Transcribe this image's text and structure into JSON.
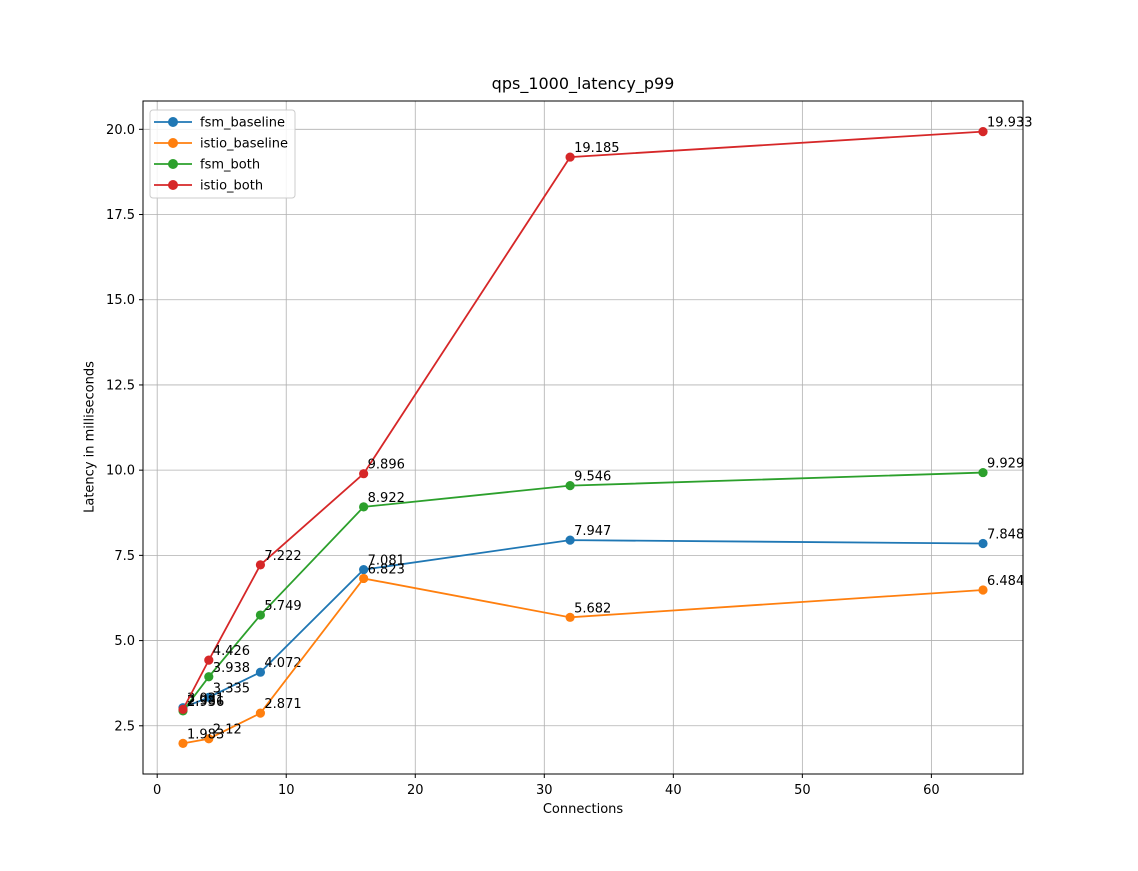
{
  "chart_data": {
    "type": "line",
    "title": "qps_1000_latency_p99",
    "xlabel": "Connections",
    "ylabel": "Latency in milliseconds",
    "x": [
      2,
      4,
      8,
      16,
      32,
      64
    ],
    "series": [
      {
        "name": "fsm_baseline",
        "color": "#1f77b4",
        "values": [
          3.031,
          3.335,
          4.072,
          7.081,
          7.947,
          7.848
        ],
        "labels": [
          "3.031",
          "3.335",
          "4.072",
          "7.081",
          "7.947",
          "7.848"
        ]
      },
      {
        "name": "istio_baseline",
        "color": "#ff7f0e",
        "values": [
          1.983,
          2.12,
          2.871,
          6.823,
          5.682,
          6.484
        ],
        "labels": [
          "1.983",
          "2.12",
          "2.871",
          "6.823",
          "5.682",
          "6.484"
        ]
      },
      {
        "name": "fsm_both",
        "color": "#2ca02c",
        "values": [
          2.936,
          3.938,
          5.749,
          8.922,
          9.546,
          9.929
        ],
        "labels": [
          "2.936",
          "3.938",
          "5.749",
          "8.922",
          "9.546",
          "9.929"
        ]
      },
      {
        "name": "istio_both",
        "color": "#d62728",
        "values": [
          2.981,
          4.426,
          7.222,
          9.896,
          19.185,
          19.933
        ],
        "labels": [
          "2.981",
          "4.426",
          "7.222",
          "9.896",
          "19.185",
          "19.933"
        ]
      }
    ],
    "xticks": [
      "0",
      "10",
      "20",
      "30",
      "40",
      "50",
      "60"
    ],
    "yticks": [
      "2.5",
      "5.0",
      "7.5",
      "10.0",
      "12.5",
      "15.0",
      "17.5",
      "20.0"
    ],
    "xlim": [
      -1.1,
      67.1
    ],
    "ylim": [
      1.0855,
      20.8305
    ],
    "grid": true,
    "legend_position": "upper left",
    "grid_color": "#b0b0b0",
    "axes_color": "#000000",
    "annotation_color": "#000000",
    "background": "#ffffff",
    "legend_border_color": "#cccccc"
  }
}
